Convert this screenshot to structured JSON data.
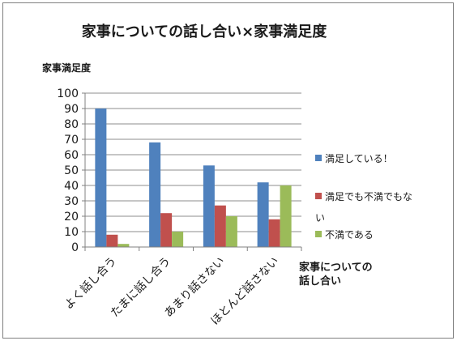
{
  "chart_data": {
    "type": "bar",
    "title": "家事についての話し合い×家事満足度",
    "ylabel": "家事満足度",
    "xlabel": "家事についての\n話し合い",
    "ylim": [
      0,
      100
    ],
    "yticks": [
      0,
      10,
      20,
      30,
      40,
      50,
      60,
      70,
      80,
      90,
      100
    ],
    "grid": true,
    "legend_position": "right",
    "categories": [
      "よく話し合う",
      "たまに話し合う",
      "あまり話さない",
      "ほとんど話さない"
    ],
    "series": [
      {
        "name": "満足している！",
        "color": "#4F81BD",
        "values": [
          90,
          68,
          53,
          42
        ]
      },
      {
        "name": "満足でも不満でもない",
        "legend_lines": [
          "満足でも不満でもな",
          "い"
        ],
        "color": "#C0504D",
        "values": [
          8,
          22,
          27,
          18
        ]
      },
      {
        "name": "不満である",
        "color": "#9BBB59",
        "values": [
          2,
          10,
          20,
          40
        ]
      }
    ]
  }
}
